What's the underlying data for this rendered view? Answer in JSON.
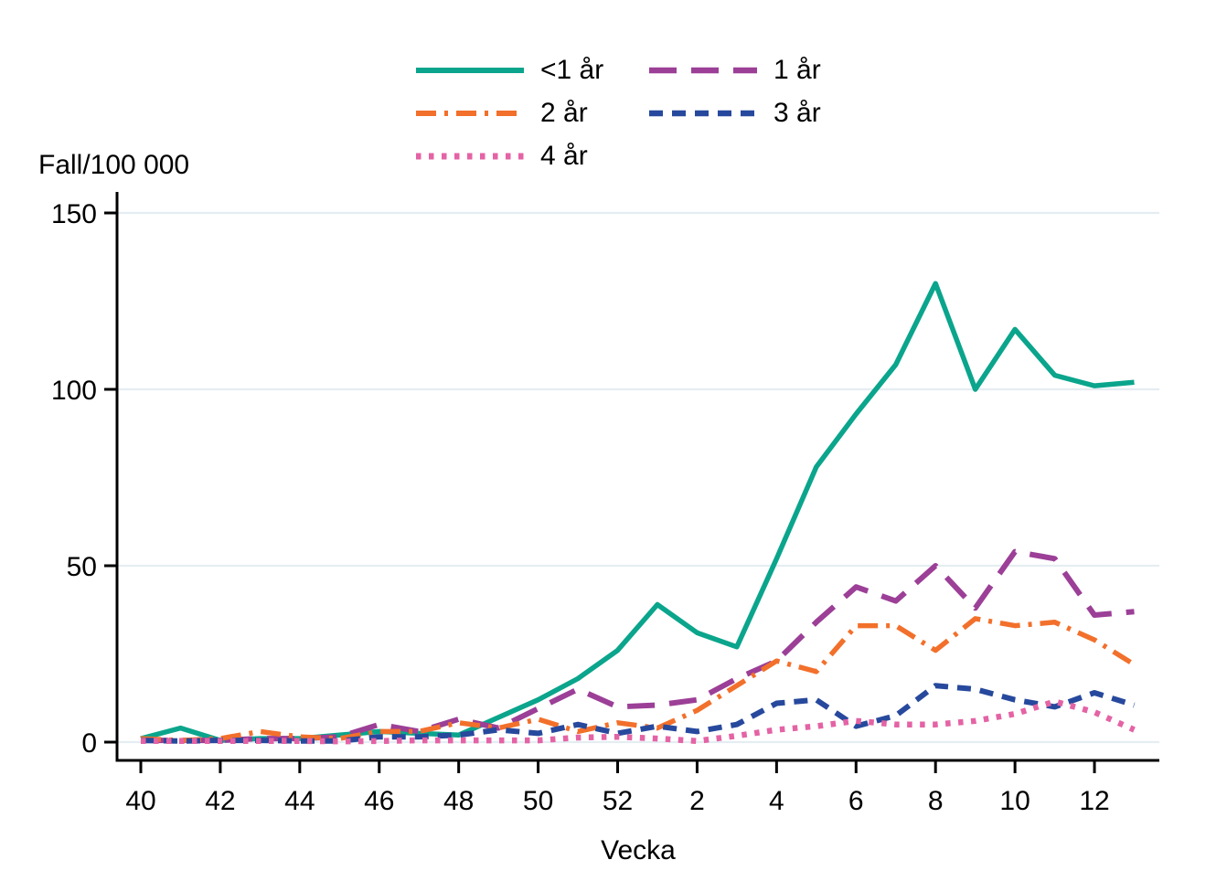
{
  "page": {
    "background": "#ffffff"
  },
  "chart_data": {
    "type": "line",
    "title": "",
    "ylabel": "Fall/100 000",
    "xlabel": "Vecka",
    "x_categories": [
      "40",
      "41",
      "42",
      "43",
      "44",
      "45",
      "46",
      "47",
      "48",
      "49",
      "50",
      "51",
      "52",
      "1",
      "2",
      "3",
      "4",
      "5",
      "6",
      "7",
      "8",
      "9",
      "10",
      "11",
      "12",
      "13"
    ],
    "x_tick_labels": [
      "40",
      "42",
      "44",
      "46",
      "48",
      "50",
      "52",
      "2",
      "4",
      "6",
      "8",
      "10",
      "12"
    ],
    "x_tick_indices": [
      0,
      2,
      4,
      6,
      8,
      10,
      12,
      14,
      16,
      18,
      20,
      22,
      24
    ],
    "y_ticks": [
      0,
      50,
      100,
      150
    ],
    "ylim": [
      0,
      150
    ],
    "grid": "horizontal",
    "grid_color": "#e4edf2",
    "axis_color": "#000000",
    "legend_position": "top",
    "series": [
      {
        "name": "<1 år",
        "color": "#0aa58c",
        "dash": "solid",
        "values": [
          1,
          4,
          0.5,
          1,
          1,
          2,
          3,
          2.5,
          2,
          7,
          12,
          18,
          26,
          39,
          31,
          27,
          52,
          78,
          93,
          107,
          130,
          100,
          117,
          104,
          101,
          102
        ]
      },
      {
        "name": "1 år",
        "color": "#9c3f97",
        "dash": "long-dash",
        "values": [
          0.5,
          0.5,
          0.5,
          1,
          1,
          1.5,
          5,
          3,
          6.5,
          4,
          9.5,
          15,
          10,
          10.5,
          12,
          18,
          23,
          34,
          44,
          40,
          50,
          38,
          54,
          52,
          36,
          37
        ]
      },
      {
        "name": "2 år",
        "color": "#f2702b",
        "dash": "dash-dot",
        "values": [
          1,
          0.5,
          1,
          3,
          1.5,
          1,
          3,
          3,
          5.5,
          4,
          6.5,
          3,
          5.5,
          4,
          9,
          16,
          23,
          20,
          33,
          33,
          26,
          35,
          33,
          34,
          29,
          22
        ]
      },
      {
        "name": "3 år",
        "color": "#27499d",
        "dash": "dash",
        "values": [
          0.5,
          0.3,
          0.5,
          0.5,
          0.3,
          0.3,
          1.5,
          1.5,
          2,
          3.5,
          2.5,
          5,
          2.5,
          4.5,
          3,
          5,
          11,
          12,
          4.5,
          7.5,
          16,
          15,
          12,
          10,
          14,
          10.5
        ]
      },
      {
        "name": "4 år",
        "color": "#e463a5",
        "dash": "dot",
        "values": [
          0.3,
          0.3,
          0.3,
          0.3,
          0.3,
          0.2,
          0.3,
          0.5,
          0.5,
          0.5,
          0.5,
          1.3,
          1.5,
          1,
          0.3,
          1.8,
          3.5,
          4.5,
          6,
          5,
          5,
          6,
          8,
          11.5,
          8.5,
          3.5
        ]
      }
    ]
  }
}
